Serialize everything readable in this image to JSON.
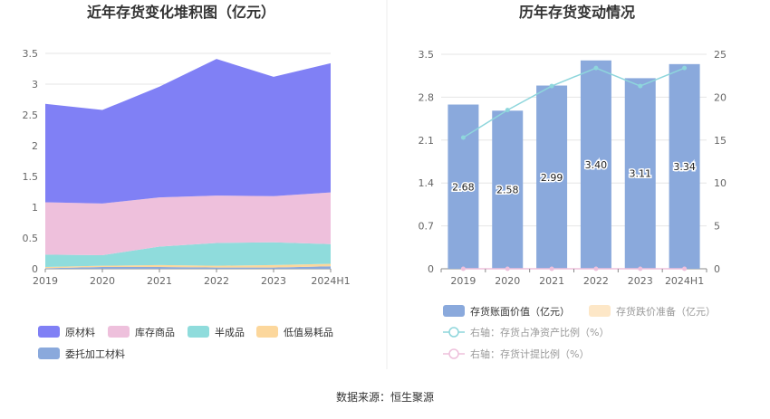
{
  "source": "数据来源：恒生聚源",
  "colors": {
    "raw": "#8080f5",
    "finished": "#eec0dc",
    "semi": "#8fdcdc",
    "consumables": "#fcd79c",
    "outsourced": "#8aa9dc",
    "bar": "#8aa9dc",
    "impairment": "#fde7c7",
    "ratio_net": "#8ed6dc",
    "ratio_prov": "#eec0dc"
  },
  "chart_data": [
    {
      "type": "area",
      "title": "近年存货变化堆积图（亿元）",
      "categories": [
        "2019",
        "2020",
        "2021",
        "2022",
        "2023",
        "2024H1"
      ],
      "ylim": [
        0,
        3.5
      ],
      "yticks": [
        "0",
        "0.5",
        "1",
        "1.5",
        "2",
        "2.5",
        "3",
        "3.5"
      ],
      "series": [
        {
          "name": "原材料",
          "values": [
            1.6,
            1.52,
            1.8,
            2.22,
            1.94,
            2.1
          ]
        },
        {
          "name": "库存商品",
          "values": [
            0.85,
            0.84,
            0.8,
            0.77,
            0.75,
            0.84
          ]
        },
        {
          "name": "半成品",
          "values": [
            0.2,
            0.17,
            0.3,
            0.37,
            0.37,
            0.32
          ]
        },
        {
          "name": "低值易耗品",
          "values": [
            0.02,
            0.02,
            0.03,
            0.03,
            0.04,
            0.04
          ]
        },
        {
          "name": "委托加工材料",
          "values": [
            0.01,
            0.03,
            0.03,
            0.02,
            0.02,
            0.04
          ]
        }
      ]
    },
    {
      "type": "bar",
      "title": "历年存货变动情况",
      "categories": [
        "2019",
        "2020",
        "2021",
        "2022",
        "2023",
        "2024H1"
      ],
      "ylim": [
        0,
        3.5
      ],
      "y2lim": [
        0,
        25
      ],
      "yticks": [
        "0",
        "0.7",
        "1.4",
        "2.1",
        "2.8",
        "3.5"
      ],
      "y2ticks": [
        "0",
        "5",
        "10",
        "15",
        "20",
        "25"
      ],
      "bar_series": {
        "name": "存货账面价值（亿元）",
        "values": [
          2.68,
          2.58,
          2.99,
          3.4,
          3.11,
          3.34
        ],
        "labels": [
          "2.68",
          "2.58",
          "2.99",
          "3.40",
          "3.11",
          "3.34"
        ]
      },
      "impairment_series": {
        "name": "存货跌价准备（亿元）",
        "values": [
          0,
          0,
          0,
          0,
          0,
          0
        ]
      },
      "line_series": [
        {
          "name": "右轴：存货占净资产比例（%）",
          "values": [
            15.3,
            18.5,
            21.3,
            23.4,
            21.3,
            23.4
          ]
        },
        {
          "name": "右轴：存货计提比例（%）",
          "values": [
            0,
            0,
            0,
            0,
            0,
            0
          ]
        }
      ]
    }
  ]
}
